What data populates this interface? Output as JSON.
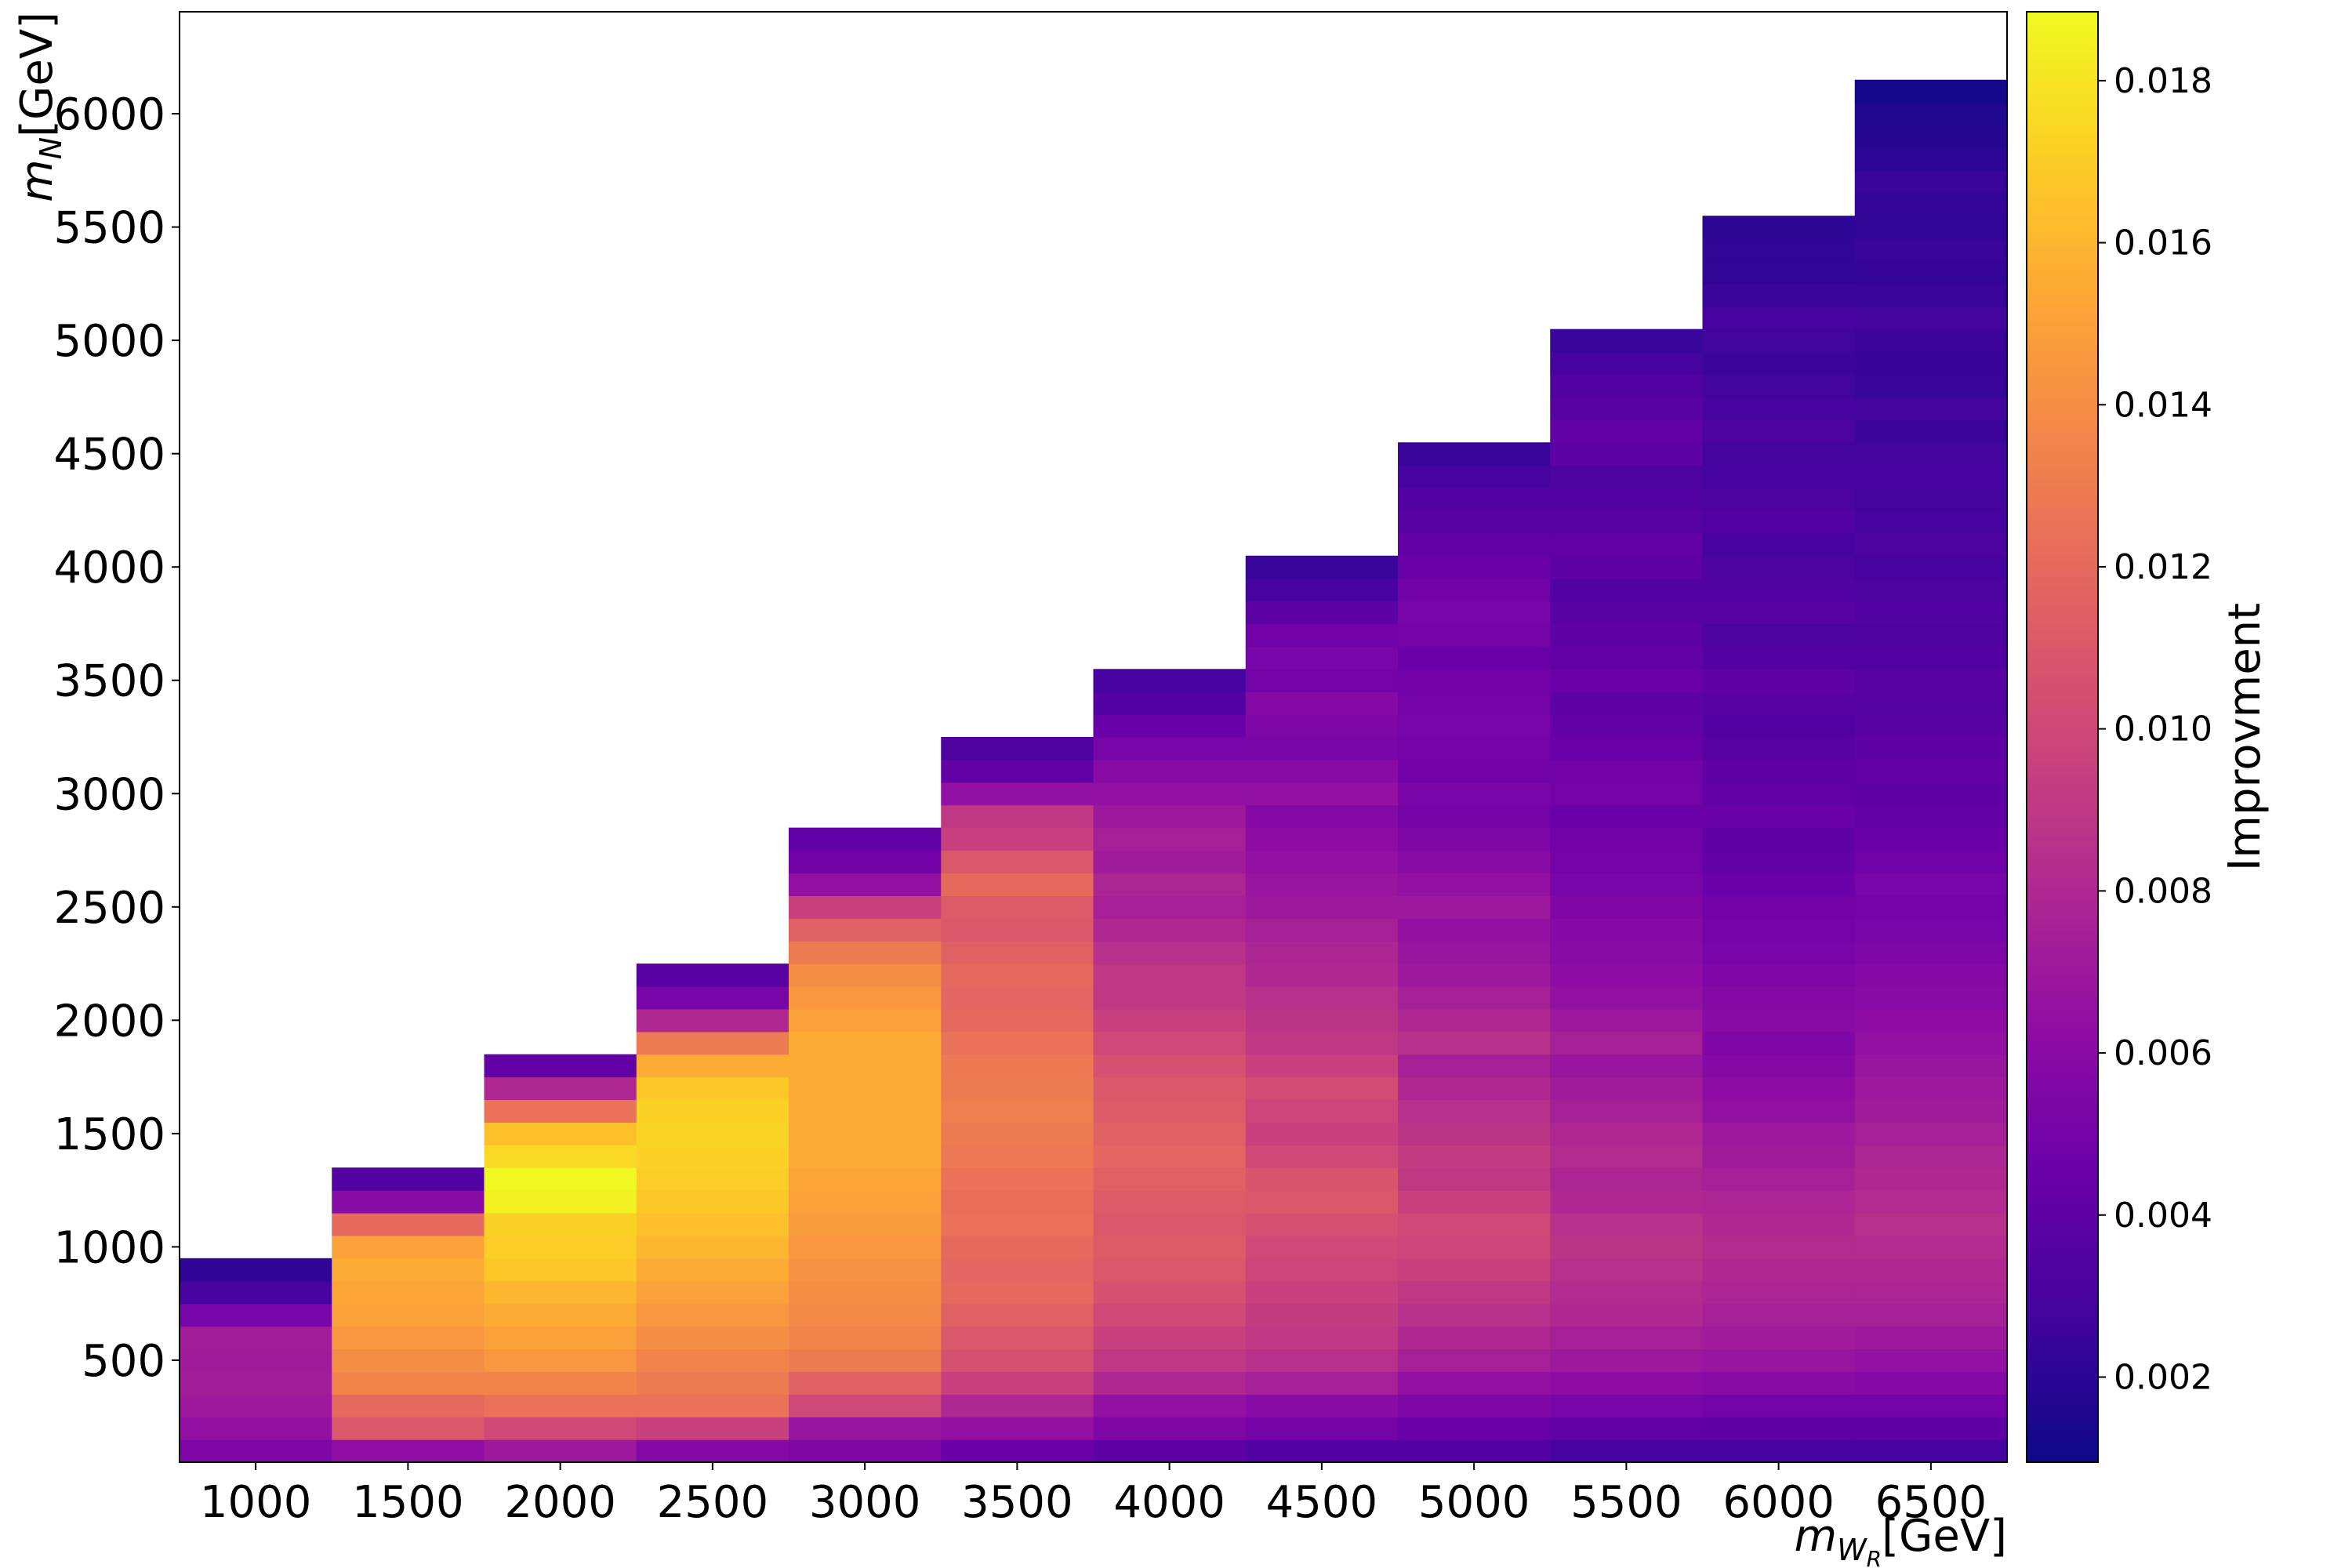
{
  "chart_data": {
    "type": "heatmap",
    "title": "",
    "xlabel": "m_{W_R}[GeV]",
    "ylabel": "m_N[GeV]",
    "colorbar_label": "Improvment",
    "colormap": "plasma",
    "x_ticks": [
      1000,
      1500,
      2000,
      2500,
      3000,
      3500,
      4000,
      4500,
      5000,
      5500,
      6000,
      6500
    ],
    "y_ticks": [
      500,
      1000,
      1500,
      2000,
      2500,
      3000,
      3500,
      4000,
      4500,
      5000,
      5500,
      6000
    ],
    "colorbar_ticks": [
      "0.002",
      "0.004",
      "0.006",
      "0.008",
      "0.010",
      "0.012",
      "0.014",
      "0.016",
      "0.018"
    ],
    "xlim": [
      750,
      6750
    ],
    "ylim": [
      50,
      6450
    ],
    "clim": [
      0.00095,
      0.01885
    ],
    "mN_bin_width": 100,
    "mN_grid_start": 50,
    "columns": [
      {
        "mWR": 1000,
        "values": [
          0.0055,
          0.0065,
          0.007,
          0.0073,
          0.0072,
          0.0073,
          0.0052,
          0.003,
          0.0021
        ]
      },
      {
        "mWR": 1500,
        "values": [
          0.0063,
          0.011,
          0.012,
          0.0135,
          0.014,
          0.0145,
          0.015,
          0.0152,
          0.0155,
          0.015,
          0.012,
          0.006,
          0.0035
        ]
      },
      {
        "mWR": 2000,
        "values": [
          0.007,
          0.01,
          0.0125,
          0.0135,
          0.0145,
          0.015,
          0.0155,
          0.016,
          0.0168,
          0.017,
          0.0172,
          0.0185,
          0.0188,
          0.0175,
          0.0165,
          0.0125,
          0.008,
          0.0042
        ]
      },
      {
        "mWR": 2500,
        "values": [
          0.0058,
          0.0095,
          0.0125,
          0.013,
          0.0135,
          0.014,
          0.0145,
          0.015,
          0.0155,
          0.016,
          0.0165,
          0.0168,
          0.017,
          0.0172,
          0.0173,
          0.0172,
          0.0168,
          0.0155,
          0.013,
          0.008,
          0.0052,
          0.0038
        ]
      },
      {
        "mWR": 3000,
        "values": [
          0.0055,
          0.0068,
          0.01,
          0.0115,
          0.013,
          0.0135,
          0.0138,
          0.014,
          0.0142,
          0.0145,
          0.0148,
          0.015,
          0.0152,
          0.0155,
          0.0155,
          0.0155,
          0.0155,
          0.0155,
          0.0155,
          0.015,
          0.0145,
          0.014,
          0.013,
          0.0115,
          0.0095,
          0.0065,
          0.0048,
          0.0042
        ]
      },
      {
        "mWR": 3500,
        "values": [
          0.0045,
          0.0065,
          0.008,
          0.0095,
          0.0105,
          0.011,
          0.0115,
          0.012,
          0.0118,
          0.012,
          0.0125,
          0.0123,
          0.0125,
          0.0128,
          0.013,
          0.0132,
          0.013,
          0.0128,
          0.0125,
          0.012,
          0.0118,
          0.012,
          0.0115,
          0.011,
          0.0112,
          0.012,
          0.011,
          0.0095,
          0.009,
          0.0065,
          0.0042,
          0.0033
        ]
      },
      {
        "mWR": 4000,
        "values": [
          0.004,
          0.0055,
          0.0065,
          0.008,
          0.009,
          0.0095,
          0.01,
          0.0105,
          0.011,
          0.0112,
          0.011,
          0.0112,
          0.0115,
          0.0118,
          0.0115,
          0.0112,
          0.011,
          0.0105,
          0.01,
          0.0095,
          0.009,
          0.009,
          0.0085,
          0.008,
          0.0075,
          0.0078,
          0.0072,
          0.0075,
          0.007,
          0.0065,
          0.006,
          0.0052,
          0.0045,
          0.0035,
          0.003
        ]
      },
      {
        "mWR": 4500,
        "values": [
          0.0035,
          0.005,
          0.006,
          0.0075,
          0.0085,
          0.009,
          0.0092,
          0.0095,
          0.0098,
          0.01,
          0.0105,
          0.011,
          0.0108,
          0.01,
          0.0095,
          0.0098,
          0.0102,
          0.0095,
          0.009,
          0.0088,
          0.0085,
          0.008,
          0.0078,
          0.0075,
          0.007,
          0.0068,
          0.0065,
          0.0062,
          0.0058,
          0.0065,
          0.006,
          0.0052,
          0.0055,
          0.0058,
          0.005,
          0.0052,
          0.0048,
          0.004,
          0.003,
          0.0025
        ]
      },
      {
        "mWR": 5000,
        "values": [
          0.0035,
          0.0045,
          0.0055,
          0.0065,
          0.0075,
          0.008,
          0.0085,
          0.009,
          0.0095,
          0.0098,
          0.01,
          0.0095,
          0.009,
          0.0092,
          0.0088,
          0.0085,
          0.008,
          0.0075,
          0.0085,
          0.008,
          0.0075,
          0.007,
          0.0068,
          0.0065,
          0.007,
          0.0065,
          0.006,
          0.0055,
          0.005,
          0.0052,
          0.0048,
          0.005,
          0.0052,
          0.005,
          0.0048,
          0.0045,
          0.005,
          0.0052,
          0.0048,
          0.0045,
          0.0042,
          0.0038,
          0.0035,
          0.003,
          0.0025
        ]
      },
      {
        "mWR": 5500,
        "values": [
          0.003,
          0.0042,
          0.0052,
          0.0062,
          0.007,
          0.0075,
          0.008,
          0.0082,
          0.0085,
          0.0088,
          0.0085,
          0.008,
          0.0078,
          0.0082,
          0.008,
          0.0075,
          0.0072,
          0.0068,
          0.0075,
          0.007,
          0.0065,
          0.0062,
          0.006,
          0.0058,
          0.0055,
          0.0052,
          0.005,
          0.0048,
          0.0045,
          0.005,
          0.0048,
          0.0045,
          0.0042,
          0.004,
          0.0045,
          0.0042,
          0.004,
          0.0038,
          0.0035,
          0.004,
          0.0042,
          0.0038,
          0.0035,
          0.0032,
          0.004,
          0.0042,
          0.0038,
          0.0035,
          0.003,
          0.0025
        ]
      },
      {
        "mWR": 6000,
        "values": [
          0.003,
          0.004,
          0.005,
          0.006,
          0.0068,
          0.0072,
          0.0075,
          0.0078,
          0.008,
          0.0082,
          0.008,
          0.0078,
          0.0075,
          0.0072,
          0.007,
          0.0065,
          0.0062,
          0.0058,
          0.0055,
          0.006,
          0.0058,
          0.0055,
          0.0052,
          0.005,
          0.0048,
          0.0045,
          0.0042,
          0.004,
          0.0045,
          0.0042,
          0.004,
          0.0038,
          0.0035,
          0.0038,
          0.004,
          0.0035,
          0.0032,
          0.0038,
          0.0035,
          0.0032,
          0.003,
          0.0035,
          0.0032,
          0.003,
          0.0028,
          0.0032,
          0.003,
          0.0028,
          0.0026,
          0.0028,
          0.003,
          0.0025,
          0.0022,
          0.0022,
          0.002
        ]
      },
      {
        "mWR": 6500,
        "values": [
          0.003,
          0.004,
          0.005,
          0.0058,
          0.0065,
          0.007,
          0.0075,
          0.0078,
          0.008,
          0.0082,
          0.0085,
          0.0082,
          0.008,
          0.0078,
          0.0075,
          0.0072,
          0.007,
          0.0068,
          0.0065,
          0.0062,
          0.006,
          0.0058,
          0.0055,
          0.0052,
          0.005,
          0.0052,
          0.0048,
          0.0045,
          0.0042,
          0.004,
          0.0042,
          0.004,
          0.0038,
          0.0036,
          0.0038,
          0.0035,
          0.0033,
          0.0035,
          0.0032,
          0.003,
          0.0032,
          0.003,
          0.0028,
          0.003,
          0.0028,
          0.0026,
          0.0028,
          0.0025,
          0.0024,
          0.0026,
          0.0028,
          0.0025,
          0.0023,
          0.0025,
          0.0022,
          0.0023,
          0.0025,
          0.002,
          0.0018,
          0.0016,
          0.0012
        ]
      }
    ]
  }
}
